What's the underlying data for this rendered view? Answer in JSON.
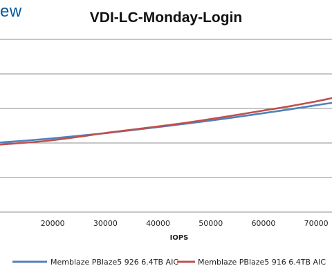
{
  "logo_fragment": "ew",
  "chart_data": {
    "type": "line",
    "title": "VDI-LC-Monday-Login",
    "xlabel": "IOPS",
    "ylabel": "",
    "xlim": [
      10000,
      73000
    ],
    "ylim": [
      0,
      1
    ],
    "x_ticks": [
      20000,
      30000,
      40000,
      50000,
      60000,
      70000
    ],
    "x_tick_labels": [
      "20000",
      "30000",
      "40000",
      "50000",
      "60000",
      "70000"
    ],
    "grid": "horizontal",
    "legend_position": "bottom",
    "series": [
      {
        "name": "Memblaze PBlaze5 926 6.4TB AIC",
        "color": "#4f81bd",
        "x": [
          10000,
          15000,
          20000,
          25000,
          30000,
          35000,
          40000,
          45000,
          50000,
          55000,
          60000,
          65000,
          70000,
          73000
        ],
        "y": [
          0.403,
          0.414,
          0.427,
          0.442,
          0.457,
          0.474,
          0.492,
          0.511,
          0.53,
          0.551,
          0.573,
          0.595,
          0.619,
          0.632
        ]
      },
      {
        "name": "Memblaze PBlaze5 916 6.4TB AIC",
        "color": "#c0504d",
        "x": [
          10000,
          15000,
          20000,
          25000,
          30000,
          35000,
          40000,
          45000,
          50000,
          55000,
          60000,
          65000,
          70000,
          73000
        ],
        "y": [
          0.391,
          0.402,
          0.416,
          0.436,
          0.458,
          0.477,
          0.496,
          0.516,
          0.539,
          0.563,
          0.588,
          0.613,
          0.641,
          0.66
        ]
      }
    ]
  }
}
